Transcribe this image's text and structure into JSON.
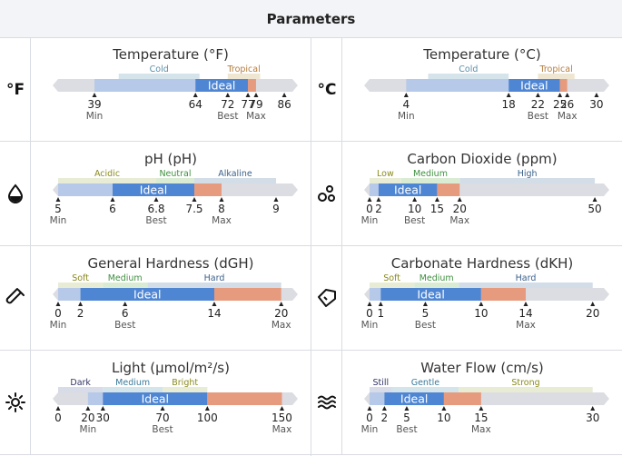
{
  "header": {
    "title": "Parameters"
  },
  "rows": [
    {
      "cells": [
        {
          "icon": "fahrenheit-icon",
          "icon_text": "°F",
          "title": "Temperature (°F)",
          "min": 30,
          "max": 88,
          "zones": [
            {
              "label": "Cold",
              "from": 45,
              "to": 65,
              "color": "#d5e4ea",
              "text": "#5a8ea8"
            },
            {
              "label": "Tropical",
              "from": 72,
              "to": 80,
              "color": "#efe6d2",
              "text": "#b57c3c"
            }
          ],
          "ranges": {
            "min": 39,
            "best_low": 64,
            "best": 72,
            "best_high": 77,
            "max": 79
          },
          "ideal_label": "Ideal",
          "ticks": [
            {
              "value": 39,
              "text": "39",
              "sub": "Min"
            },
            {
              "value": 64,
              "text": "64",
              "sub": ""
            },
            {
              "value": 72,
              "text": "72",
              "sub": "Best"
            },
            {
              "value": 77,
              "text": "77",
              "sub": ""
            },
            {
              "value": 79,
              "text": "79",
              "sub": "Max"
            },
            {
              "value": 86,
              "text": "86",
              "sub": ""
            }
          ]
        },
        {
          "icon": "celsius-icon",
          "icon_text": "°C",
          "title": "Temperature (°C)",
          "min": -1,
          "max": 31,
          "zones": [
            {
              "label": "Cold",
              "from": 7,
              "to": 18,
              "color": "#d5e4ea",
              "text": "#5a8ea8"
            },
            {
              "label": "Tropical",
              "from": 22,
              "to": 27,
              "color": "#efe6d2",
              "text": "#b57c3c"
            }
          ],
          "ranges": {
            "min": 4,
            "best_low": 18,
            "best": 22,
            "best_high": 25,
            "max": 26
          },
          "ideal_label": "Ideal",
          "ticks": [
            {
              "value": 4,
              "text": "4",
              "sub": "Min"
            },
            {
              "value": 18,
              "text": "18",
              "sub": ""
            },
            {
              "value": 22,
              "text": "22",
              "sub": "Best"
            },
            {
              "value": 25,
              "text": "25",
              "sub": ""
            },
            {
              "value": 26,
              "text": "26",
              "sub": "Max"
            },
            {
              "value": 30,
              "text": "30",
              "sub": ""
            }
          ]
        }
      ]
    },
    {
      "cells": [
        {
          "icon": "water-drop-icon",
          "icon_text": "",
          "title": "pH (pH)",
          "min": 5,
          "max": 9.3,
          "zones": [
            {
              "label": "Acidic",
              "from": 5,
              "to": 6.8,
              "color": "#e8ecd4",
              "text": "#8a8a20"
            },
            {
              "label": "Neutral",
              "from": 6.8,
              "to": 7.5,
              "color": "#d9ecd3",
              "text": "#3f8f3f"
            },
            {
              "label": "Alkaline",
              "from": 7.5,
              "to": 9,
              "color": "#d3dde8",
              "text": "#3a5f8a"
            }
          ],
          "ranges": {
            "min": 5,
            "best_low": 6,
            "best": 6.8,
            "best_high": 7.5,
            "max": 8
          },
          "ideal_label": "Ideal",
          "ticks": [
            {
              "value": 5,
              "text": "5",
              "sub": "Min"
            },
            {
              "value": 6,
              "text": "6",
              "sub": ""
            },
            {
              "value": 6.8,
              "text": "6.8",
              "sub": "Best"
            },
            {
              "value": 7.5,
              "text": "7.5",
              "sub": ""
            },
            {
              "value": 8,
              "text": "8",
              "sub": "Max"
            },
            {
              "value": 9,
              "text": "9",
              "sub": ""
            }
          ]
        },
        {
          "icon": "bubbles-icon",
          "icon_text": "",
          "title": "Carbon Dioxide (ppm)",
          "min": 0,
          "max": 52,
          "zones": [
            {
              "label": "Low",
              "from": 0,
              "to": 7,
              "color": "#e8ecd4",
              "text": "#8a8a20"
            },
            {
              "label": "Medium",
              "from": 7,
              "to": 20,
              "color": "#d9ecd3",
              "text": "#3f8f3f"
            },
            {
              "label": "High",
              "from": 20,
              "to": 50,
              "color": "#d3dde8",
              "text": "#3a5f8a"
            }
          ],
          "ranges": {
            "min": 0,
            "best_low": 2,
            "best": 10,
            "best_high": 15,
            "max": 20
          },
          "ideal_label": "Ideal",
          "ticks": [
            {
              "value": 0,
              "text": "0",
              "sub": "Min"
            },
            {
              "value": 2,
              "text": "2",
              "sub": ""
            },
            {
              "value": 10,
              "text": "10",
              "sub": "Best"
            },
            {
              "value": 15,
              "text": "15",
              "sub": ""
            },
            {
              "value": 20,
              "text": "20",
              "sub": "Max"
            },
            {
              "value": 50,
              "text": "50",
              "sub": ""
            }
          ]
        }
      ]
    },
    {
      "cells": [
        {
          "icon": "test-tube-icon",
          "icon_text": "",
          "title": "General Hardness (dGH)",
          "min": 0,
          "max": 21,
          "zones": [
            {
              "label": "Soft",
              "from": 0,
              "to": 4,
              "color": "#e8ecd4",
              "text": "#8a8a20"
            },
            {
              "label": "Medium",
              "from": 4,
              "to": 8,
              "color": "#d9ecd3",
              "text": "#3f8f3f"
            },
            {
              "label": "Hard",
              "from": 8,
              "to": 20,
              "color": "#d3dde8",
              "text": "#3a5f8a"
            }
          ],
          "ranges": {
            "min": 0,
            "best_low": 2,
            "best": 6,
            "best_high": 14,
            "max": 20
          },
          "ideal_label": "Ideal",
          "ticks": [
            {
              "value": 0,
              "text": "0",
              "sub": "Min"
            },
            {
              "value": 2,
              "text": "2",
              "sub": ""
            },
            {
              "value": 6,
              "text": "6",
              "sub": "Best"
            },
            {
              "value": 14,
              "text": "14",
              "sub": ""
            },
            {
              "value": 20,
              "text": "20",
              "sub": "Max"
            }
          ]
        },
        {
          "icon": "gem-icon",
          "icon_text": "",
          "title": "Carbonate Hardness (dKH)",
          "min": 0,
          "max": 21,
          "zones": [
            {
              "label": "Soft",
              "from": 0,
              "to": 4,
              "color": "#e8ecd4",
              "text": "#8a8a20"
            },
            {
              "label": "Medium",
              "from": 4,
              "to": 8,
              "color": "#d9ecd3",
              "text": "#3f8f3f"
            },
            {
              "label": "Hard",
              "from": 8,
              "to": 20,
              "color": "#d3dde8",
              "text": "#3a5f8a"
            }
          ],
          "ranges": {
            "min": 0,
            "best_low": 1,
            "best": 5,
            "best_high": 10,
            "max": 14
          },
          "ideal_label": "Ideal",
          "ticks": [
            {
              "value": 0,
              "text": "0",
              "sub": "Min"
            },
            {
              "value": 1,
              "text": "1",
              "sub": ""
            },
            {
              "value": 5,
              "text": "5",
              "sub": "Best"
            },
            {
              "value": 10,
              "text": "10",
              "sub": ""
            },
            {
              "value": 14,
              "text": "14",
              "sub": "Max"
            },
            {
              "value": 20,
              "text": "20",
              "sub": ""
            }
          ]
        }
      ]
    },
    {
      "cells": [
        {
          "icon": "sun-icon",
          "icon_text": "",
          "title": "Light (µmol/m²/s)",
          "min": 0,
          "max": 157,
          "zones": [
            {
              "label": "Dark",
              "from": 0,
              "to": 30,
              "color": "#d8dbe8",
              "text": "#333366"
            },
            {
              "label": "Medium",
              "from": 30,
              "to": 70,
              "color": "#d3e4ea",
              "text": "#3a7a9a"
            },
            {
              "label": "Bright",
              "from": 70,
              "to": 100,
              "color": "#e8ecd4",
              "text": "#8a8a20"
            }
          ],
          "ranges": {
            "min": 20,
            "best_low": 30,
            "best": 70,
            "best_high": 100,
            "max": 150
          },
          "ideal_label": "Ideal",
          "ticks": [
            {
              "value": 0,
              "text": "0",
              "sub": ""
            },
            {
              "value": 20,
              "text": "20",
              "sub": "Min"
            },
            {
              "value": 30,
              "text": "30",
              "sub": ""
            },
            {
              "value": 70,
              "text": "70",
              "sub": "Best"
            },
            {
              "value": 100,
              "text": "100",
              "sub": ""
            },
            {
              "value": 150,
              "text": "150",
              "sub": "Max"
            }
          ]
        },
        {
          "icon": "waves-icon",
          "icon_text": "",
          "title": "Water Flow (cm/s)",
          "min": 0,
          "max": 31.5,
          "zones": [
            {
              "label": "Still",
              "from": 0,
              "to": 3,
              "color": "#d8dbe8",
              "text": "#333366"
            },
            {
              "label": "Gentle",
              "from": 3,
              "to": 12,
              "color": "#d3e4ea",
              "text": "#3a7a9a"
            },
            {
              "label": "Strong",
              "from": 12,
              "to": 30,
              "color": "#e8ecd4",
              "text": "#8a8a20"
            }
          ],
          "ranges": {
            "min": 0,
            "best_low": 2,
            "best": 5,
            "best_high": 10,
            "max": 15
          },
          "ideal_label": "Ideal",
          "ticks": [
            {
              "value": 0,
              "text": "0",
              "sub": "Min"
            },
            {
              "value": 2,
              "text": "2",
              "sub": ""
            },
            {
              "value": 5,
              "text": "5",
              "sub": "Best"
            },
            {
              "value": 10,
              "text": "10",
              "sub": ""
            },
            {
              "value": 15,
              "text": "15",
              "sub": "Max"
            },
            {
              "value": 30,
              "text": "30",
              "sub": ""
            }
          ]
        }
      ]
    }
  ],
  "colors": {
    "track": "#dcdde2",
    "tolerable": "#b7c9e8",
    "ideal": "#4f86d3",
    "upper": "#e69b7e"
  }
}
